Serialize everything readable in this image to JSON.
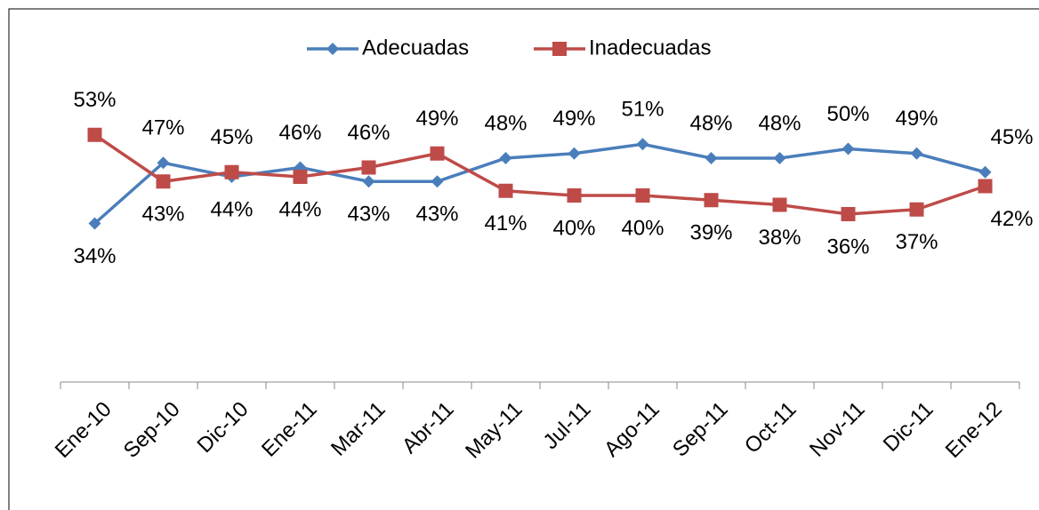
{
  "chart_data": {
    "type": "line",
    "categories": [
      "Ene-10",
      "Sep-10",
      "Dic-10",
      "Ene-11",
      "Mar-11",
      "Abr-11",
      "May-11",
      "Jul-11",
      "Ago-11",
      "Sep-11",
      "Oct-11",
      "Nov-11",
      "Dic-11",
      "Ene-12"
    ],
    "series": [
      {
        "name": "Adecuadas",
        "color": "#4a7ebb",
        "marker": "diamond",
        "values": [
          34,
          47,
          44,
          46,
          43,
          43,
          48,
          49,
          51,
          48,
          48,
          50,
          49,
          45
        ],
        "value_labels": [
          "34%",
          "47%",
          "44%",
          "46%",
          "43%",
          "43%",
          "48%",
          "49%",
          "51%",
          "48%",
          "48%",
          "50%",
          "49%",
          "45%"
        ]
      },
      {
        "name": "Inadecuadas",
        "color": "#be4b48",
        "marker": "square",
        "values": [
          53,
          43,
          45,
          44,
          46,
          49,
          41,
          40,
          40,
          39,
          38,
          36,
          37,
          42
        ],
        "value_labels": [
          "53%",
          "43%",
          "45%",
          "44%",
          "46%",
          "49%",
          "41%",
          "40%",
          "40%",
          "39%",
          "38%",
          "36%",
          "37%",
          "42%"
        ]
      }
    ],
    "ylim": [
      0,
      80
    ],
    "legend": "top"
  }
}
